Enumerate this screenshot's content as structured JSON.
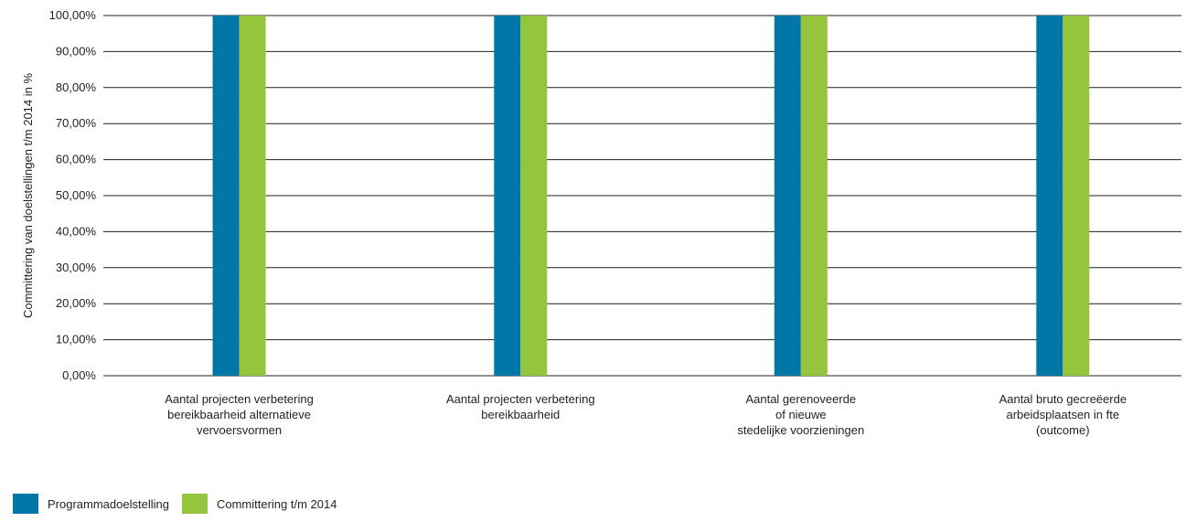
{
  "chart_data": {
    "type": "bar",
    "categories": [
      [
        "Aantal projecten verbetering",
        "bereikbaarheid alternatieve",
        "vervoersvormen"
      ],
      [
        "Aantal projecten verbetering",
        "bereikbaarheid"
      ],
      [
        "Aantal gerenoveerde",
        "of nieuwe",
        "stedelijke voorzieningen"
      ],
      [
        "Aantal bruto gecreëerde",
        "arbeidsplaatsen in fte",
        "(outcome)"
      ]
    ],
    "series": [
      {
        "name": "Programmadoelstelling",
        "color": "#0077a7",
        "values": [
          100,
          100,
          100,
          100
        ]
      },
      {
        "name": "Committering t/m 2014",
        "color": "#95c53d",
        "values": [
          100,
          100,
          100,
          100
        ]
      }
    ],
    "ylabel": "Committering van doelstellingen t/m 2014 in %",
    "ylim": [
      0,
      100
    ],
    "yticks": [
      "0,00%",
      "10,00%",
      "20,00%",
      "30,00%",
      "40,00%",
      "50,00%",
      "60,00%",
      "70,00%",
      "80,00%",
      "90,00%",
      "100,00%"
    ],
    "grid": true,
    "legend_position": "bottom-left"
  }
}
